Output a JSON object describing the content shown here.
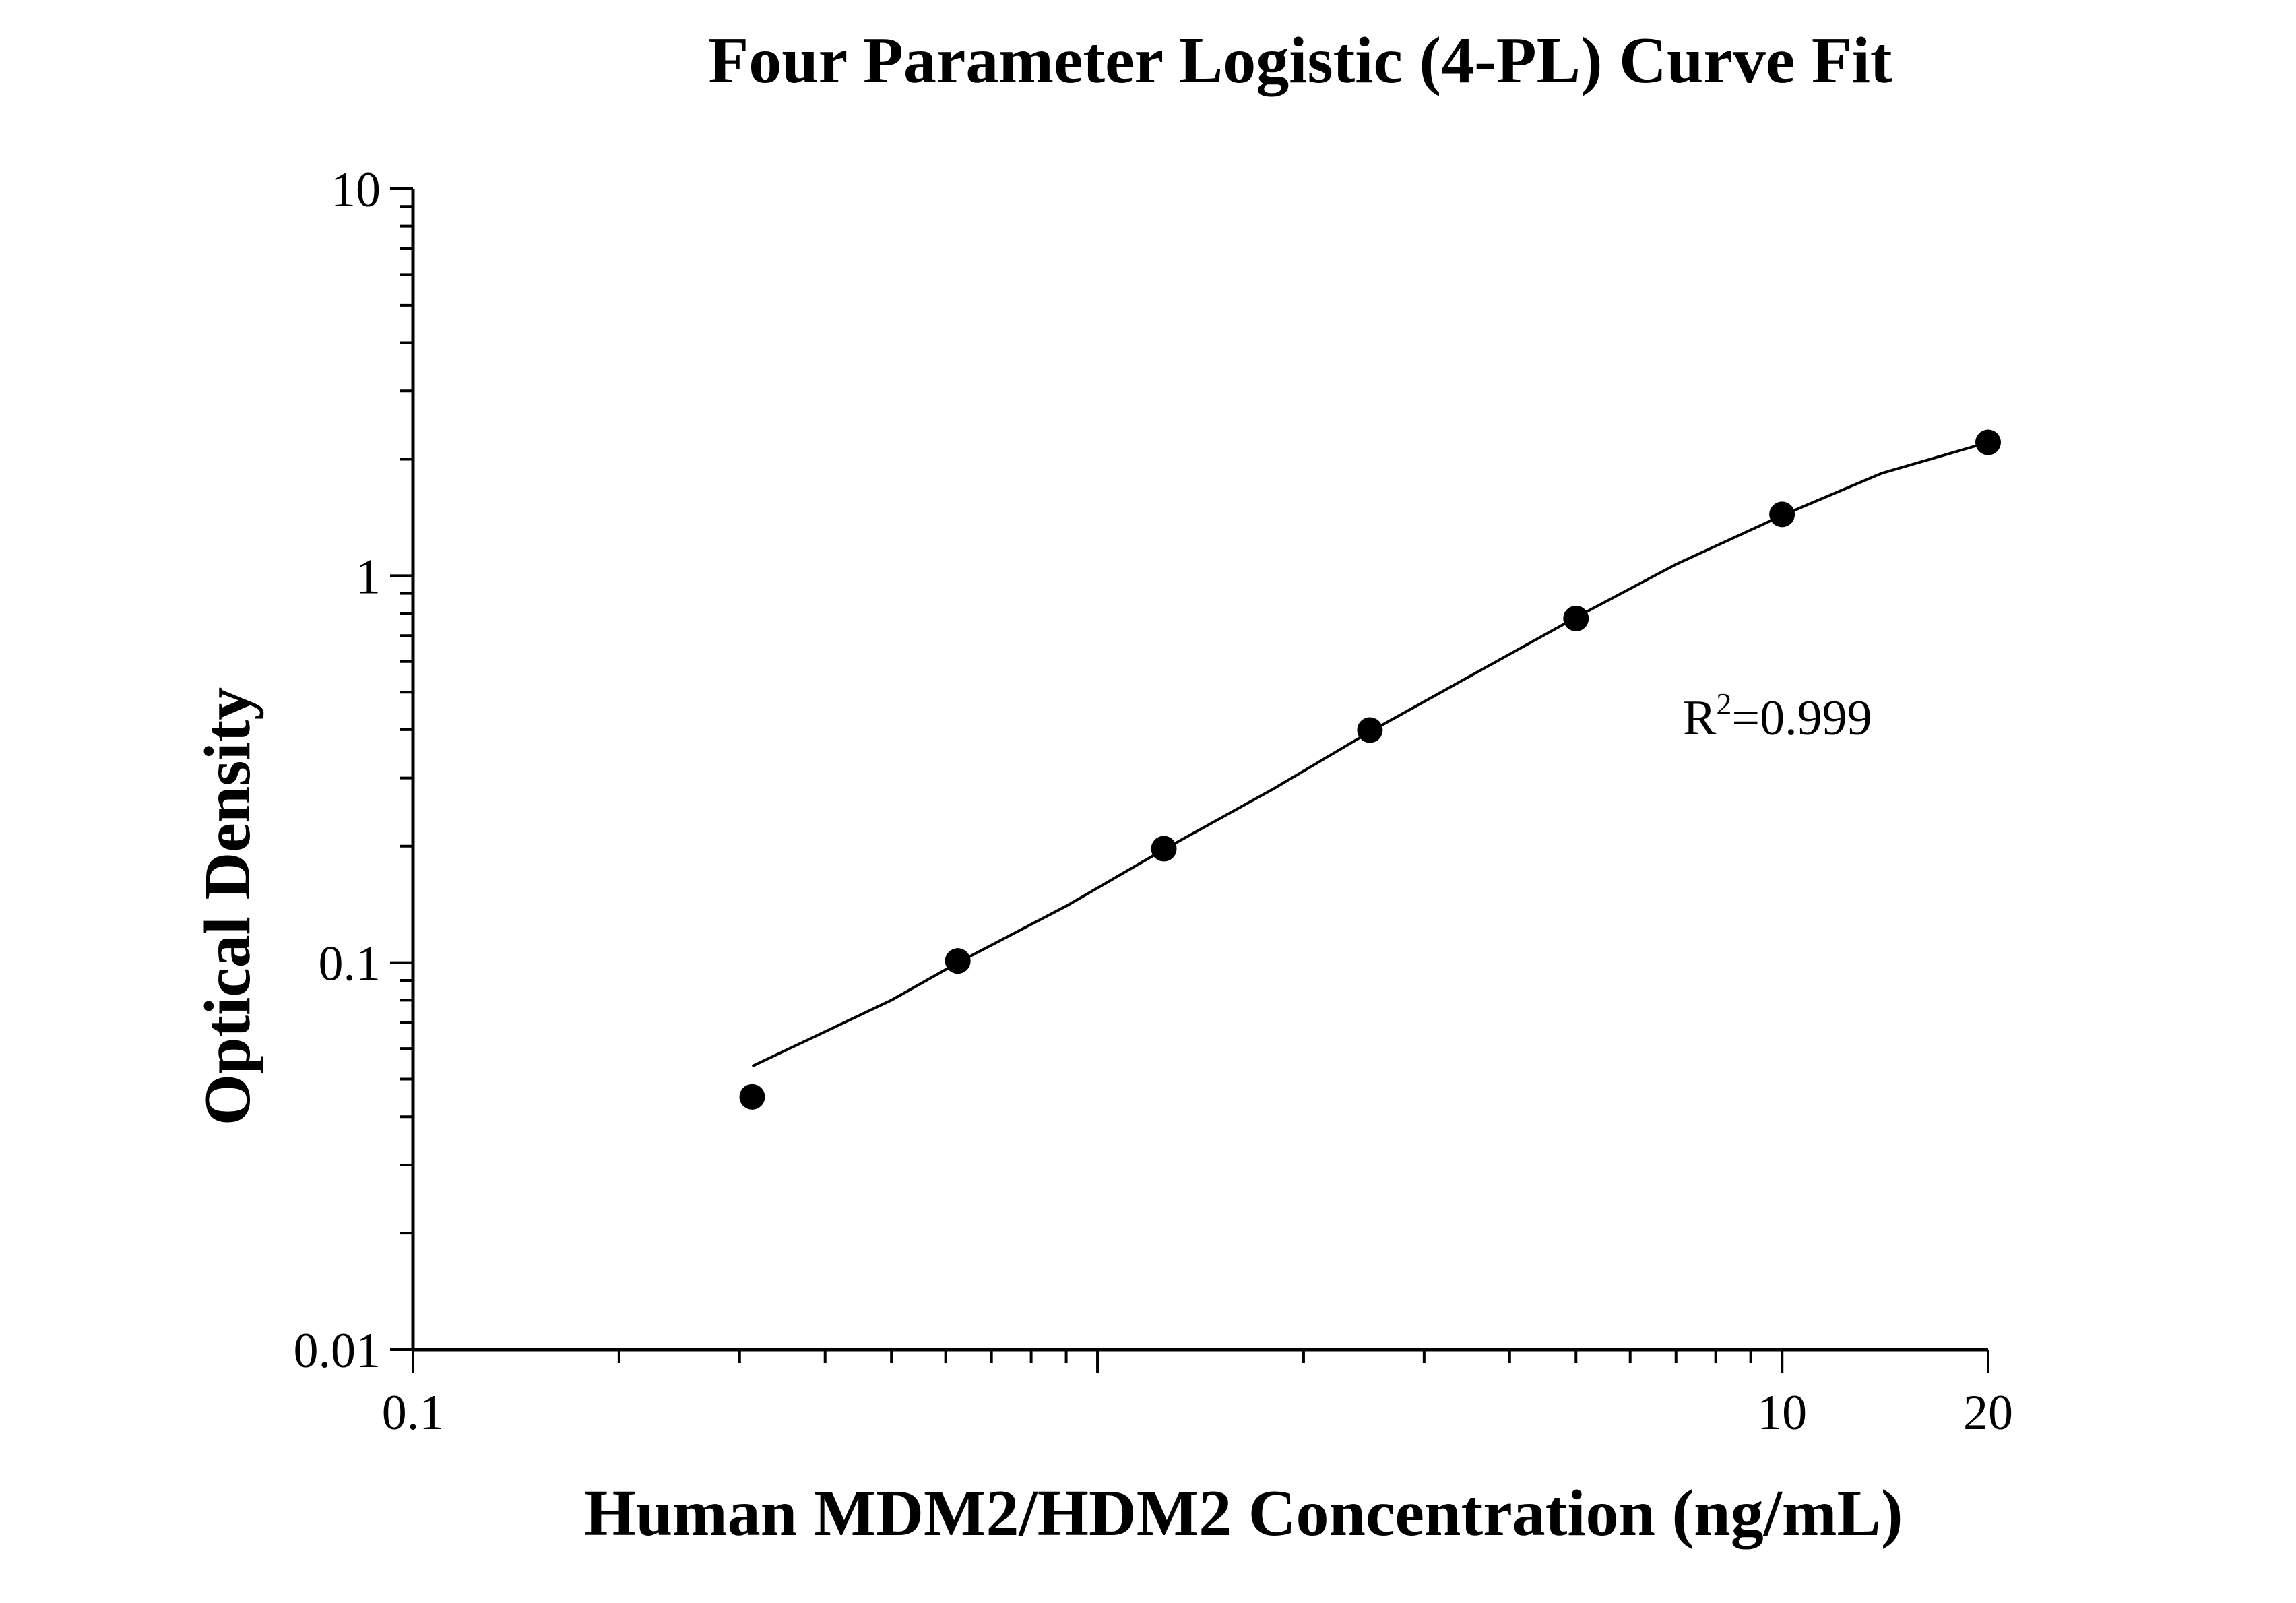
{
  "chart_data": {
    "type": "scatter",
    "title": "Four Parameter Logistic (4-PL) Curve Fit",
    "xlabel": "Human MDM2/HDM2 Concentration (ng/mL)",
    "ylabel": "Optical Density",
    "x_scale": "log",
    "y_scale": "log",
    "xlim": [
      0.1,
      20
    ],
    "ylim": [
      0.01,
      10
    ],
    "x_ticks": [
      0.1,
      10,
      20
    ],
    "x_tick_labels": [
      "0.1",
      "10",
      "20"
    ],
    "y_ticks": [
      0.01,
      0.1,
      1,
      10
    ],
    "y_tick_labels": [
      "0.01",
      "0.1",
      "1",
      "10"
    ],
    "grid": false,
    "legend": "none",
    "series": [
      {
        "points": [
          {
            "x": 0.313,
            "y": 0.045
          },
          {
            "x": 0.625,
            "y": 0.101
          },
          {
            "x": 1.25,
            "y": 0.197
          },
          {
            "x": 2.5,
            "y": 0.399
          },
          {
            "x": 5,
            "y": 0.775
          },
          {
            "x": 10,
            "y": 1.44
          },
          {
            "x": 20,
            "y": 2.21
          }
        ]
      }
    ],
    "fit_curve": {
      "x": [
        0.313,
        0.5,
        0.625,
        0.9,
        1.25,
        1.8,
        2.5,
        3.5,
        5,
        7,
        10,
        14,
        20
      ],
      "y": [
        0.054,
        0.08,
        0.1,
        0.14,
        0.196,
        0.28,
        0.395,
        0.55,
        0.78,
        1.07,
        1.43,
        1.84,
        2.21
      ]
    },
    "annotation": {
      "base": "R",
      "sup": "2",
      "rest": "=0.999"
    },
    "colors": {
      "marker": "#000000",
      "line": "#000000",
      "axis": "#000000"
    }
  }
}
